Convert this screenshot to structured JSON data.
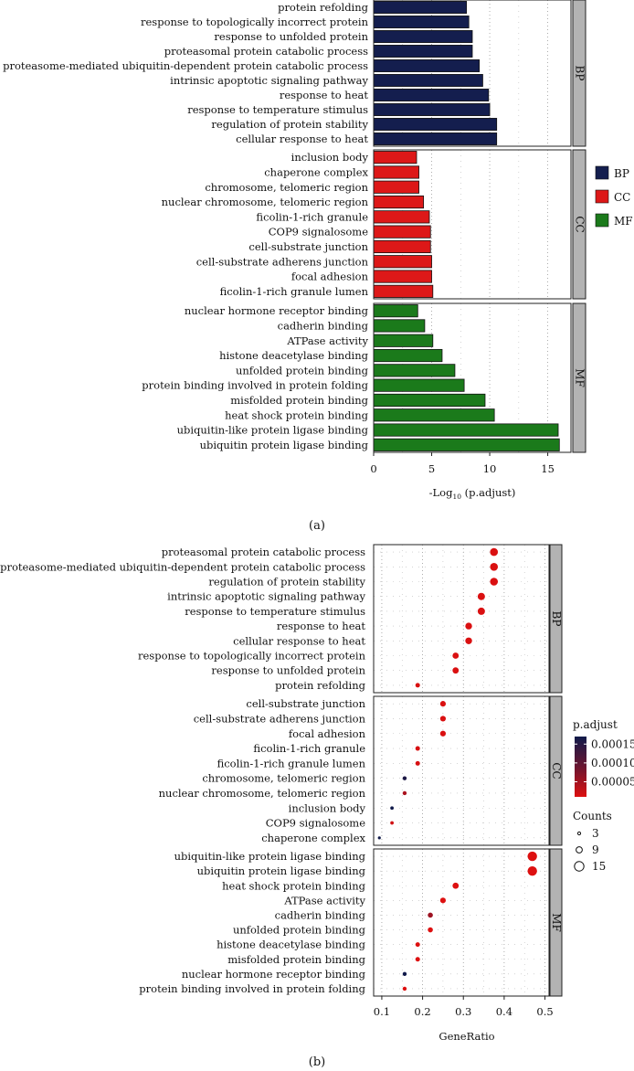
{
  "chart_data": [
    {
      "type": "bar",
      "orientation": "horizontal",
      "caption": "(a)",
      "xlabel_main": "-Log",
      "xlabel_sub": "10",
      "xlabel_tail": " (p.adjust)",
      "xlim": [
        0,
        17
      ],
      "xticks": [
        "0",
        "5",
        "10",
        "15"
      ],
      "xtick_values": [
        0,
        5,
        10,
        15
      ],
      "colors": {
        "BP": "#141e4e",
        "CC": "#dd1818",
        "MF": "#1b7a1b"
      },
      "legend": [
        "BP",
        "CC",
        "MF"
      ],
      "facets": [
        {
          "name": "BP",
          "categories": [
            "protein refolding",
            "response to topologically incorrect protein",
            "response to unfolded protein",
            "proteasomal protein catabolic process",
            "proteasome-mediated ubiquitin-dependent protein catabolic process",
            "intrinsic apoptotic signaling pathway",
            "response to heat",
            "response to temperature stimulus",
            "regulation of protein stability",
            "cellular response to heat"
          ],
          "values": [
            8.0,
            8.2,
            8.5,
            8.5,
            9.1,
            9.4,
            9.9,
            10.0,
            10.6,
            10.6
          ]
        },
        {
          "name": "CC",
          "categories": [
            "inclusion body",
            "chaperone complex",
            "chromosome, telomeric region",
            "nuclear chromosome, telomeric region",
            "ficolin-1-rich granule",
            "COP9 signalosome",
            "cell-substrate junction",
            "cell-substrate adherens junction",
            "focal adhesion",
            "ficolin-1-rich granule lumen"
          ],
          "values": [
            3.7,
            3.9,
            3.9,
            4.3,
            4.8,
            4.9,
            4.9,
            5.0,
            5.0,
            5.1
          ]
        },
        {
          "name": "MF",
          "categories": [
            "nuclear hormone receptor binding",
            "cadherin binding",
            "ATPase activity",
            "histone deacetylase binding",
            "unfolded protein binding",
            "protein binding involved in protein folding",
            "misfolded protein binding",
            "heat shock protein binding",
            "ubiquitin-like protein ligase binding",
            "ubiquitin protein ligase binding"
          ],
          "values": [
            3.8,
            4.4,
            5.1,
            5.9,
            7.0,
            7.8,
            9.6,
            10.4,
            15.9,
            16.0
          ]
        }
      ]
    },
    {
      "type": "scatter",
      "caption": "(b)",
      "xlabel": "GeneRatio",
      "xlim": [
        0.08,
        0.51
      ],
      "xticks": [
        "0.1",
        "0.2",
        "0.3",
        "0.4",
        "0.5"
      ],
      "xtick_values": [
        0.1,
        0.2,
        0.3,
        0.4,
        0.5
      ],
      "legend_color_title": "p.adjust",
      "legend_color_ticks": [
        "0.00015",
        "0.00010",
        "0.00005"
      ],
      "legend_color_values": [
        0.00015,
        0.0001,
        5e-05
      ],
      "legend_color_range": [
        1e-05,
        0.00017
      ],
      "legend_size_title": "Counts",
      "legend_size_labels": [
        "3",
        "9",
        "15"
      ],
      "legend_size_values": [
        3,
        9,
        15
      ],
      "low_color": "#dd1010",
      "high_color": "#101a4a",
      "facets": [
        {
          "name": "BP",
          "points": [
            {
              "label": "proteasomal protein catabolic process",
              "x": 0.375,
              "count": 12,
              "padj": 1.2e-05
            },
            {
              "label": "proteasome-mediated ubiquitin-dependent protein catabolic process",
              "x": 0.375,
              "count": 12,
              "padj": 1.2e-05
            },
            {
              "label": "regulation of protein stability",
              "x": 0.375,
              "count": 12,
              "padj": 1.2e-05
            },
            {
              "label": "intrinsic apoptotic signaling pathway",
              "x": 0.344,
              "count": 11,
              "padj": 1.2e-05
            },
            {
              "label": "response to temperature stimulus",
              "x": 0.344,
              "count": 11,
              "padj": 1.2e-05
            },
            {
              "label": "response to heat",
              "x": 0.313,
              "count": 10,
              "padj": 1.2e-05
            },
            {
              "label": "cellular response to heat",
              "x": 0.313,
              "count": 10,
              "padj": 1.2e-05
            },
            {
              "label": "response to topologically incorrect protein",
              "x": 0.281,
              "count": 9,
              "padj": 1.2e-05
            },
            {
              "label": "response to unfolded protein",
              "x": 0.281,
              "count": 9,
              "padj": 1.2e-05
            },
            {
              "label": "protein refolding",
              "x": 0.188,
              "count": 6,
              "padj": 1.4e-05
            }
          ]
        },
        {
          "name": "CC",
          "points": [
            {
              "label": "cell-substrate junction",
              "x": 0.25,
              "count": 8,
              "padj": 1.2e-05
            },
            {
              "label": "cell-substrate adherens junction",
              "x": 0.25,
              "count": 8,
              "padj": 1.2e-05
            },
            {
              "label": "focal adhesion",
              "x": 0.25,
              "count": 8,
              "padj": 1.2e-05
            },
            {
              "label": "ficolin-1-rich granule",
              "x": 0.188,
              "count": 6,
              "padj": 1.5e-05
            },
            {
              "label": "ficolin-1-rich granule lumen",
              "x": 0.188,
              "count": 6,
              "padj": 1.5e-05
            },
            {
              "label": "chromosome, telomeric region",
              "x": 0.156,
              "count": 5,
              "padj": 0.00016
            },
            {
              "label": "nuclear chromosome, telomeric region",
              "x": 0.156,
              "count": 5,
              "padj": 5e-05
            },
            {
              "label": "inclusion body",
              "x": 0.125,
              "count": 4,
              "padj": 0.00017
            },
            {
              "label": "COP9 signalosome",
              "x": 0.125,
              "count": 4,
              "padj": 2e-05
            },
            {
              "label": "chaperone complex",
              "x": 0.094,
              "count": 3,
              "padj": 0.00017
            }
          ]
        },
        {
          "name": "MF",
          "points": [
            {
              "label": "ubiquitin-like protein ligase binding",
              "x": 0.469,
              "count": 15,
              "padj": 1e-05
            },
            {
              "label": "ubiquitin protein ligase binding",
              "x": 0.469,
              "count": 15,
              "padj": 1e-05
            },
            {
              "label": "heat shock protein binding",
              "x": 0.281,
              "count": 9,
              "padj": 1e-05
            },
            {
              "label": "ATPase activity",
              "x": 0.25,
              "count": 8,
              "padj": 1e-05
            },
            {
              "label": "cadherin binding",
              "x": 0.219,
              "count": 7,
              "padj": 6e-05
            },
            {
              "label": "unfolded protein binding",
              "x": 0.219,
              "count": 7,
              "padj": 1e-05
            },
            {
              "label": "histone deacetylase binding",
              "x": 0.188,
              "count": 6,
              "padj": 1e-05
            },
            {
              "label": "misfolded protein binding",
              "x": 0.188,
              "count": 6,
              "padj": 1e-05
            },
            {
              "label": "nuclear hormone receptor binding",
              "x": 0.156,
              "count": 5,
              "padj": 0.00017
            },
            {
              "label": "protein binding involved in protein folding",
              "x": 0.156,
              "count": 5,
              "padj": 1e-05
            }
          ]
        }
      ]
    }
  ]
}
